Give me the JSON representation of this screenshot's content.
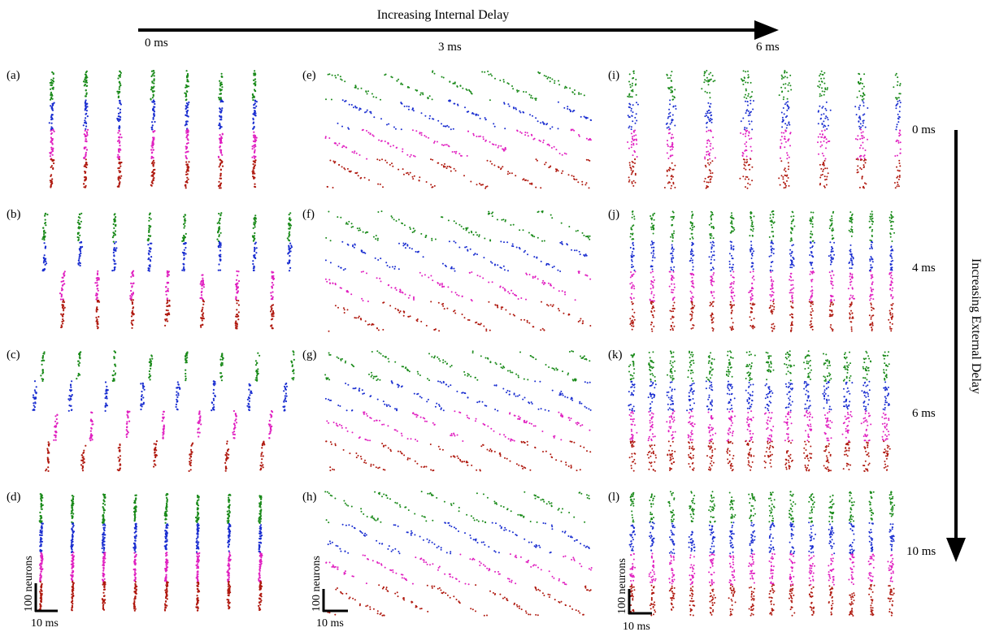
{
  "header": {
    "title": "Increasing Internal Delay",
    "ticks": [
      "0 ms",
      "3 ms",
      "6 ms"
    ]
  },
  "side": {
    "title": "Increasing External Delay",
    "ticks": [
      "0 ms",
      "4 ms",
      "6 ms",
      "10 ms"
    ]
  },
  "panel_labels": [
    "(a)",
    "(b)",
    "(c)",
    "(d)",
    "(e)",
    "(f)",
    "(g)",
    "(h)",
    "(i)",
    "(j)",
    "(k)",
    "(l)"
  ],
  "scale_bar": {
    "vertical": "100 neurons",
    "horizontal": "10 ms"
  },
  "colors": {
    "population_1": "#1a8a1a",
    "population_2": "#1a2ed0",
    "population_3": "#e020c0",
    "population_4": "#b01a10",
    "axes": "#000000"
  }
}
